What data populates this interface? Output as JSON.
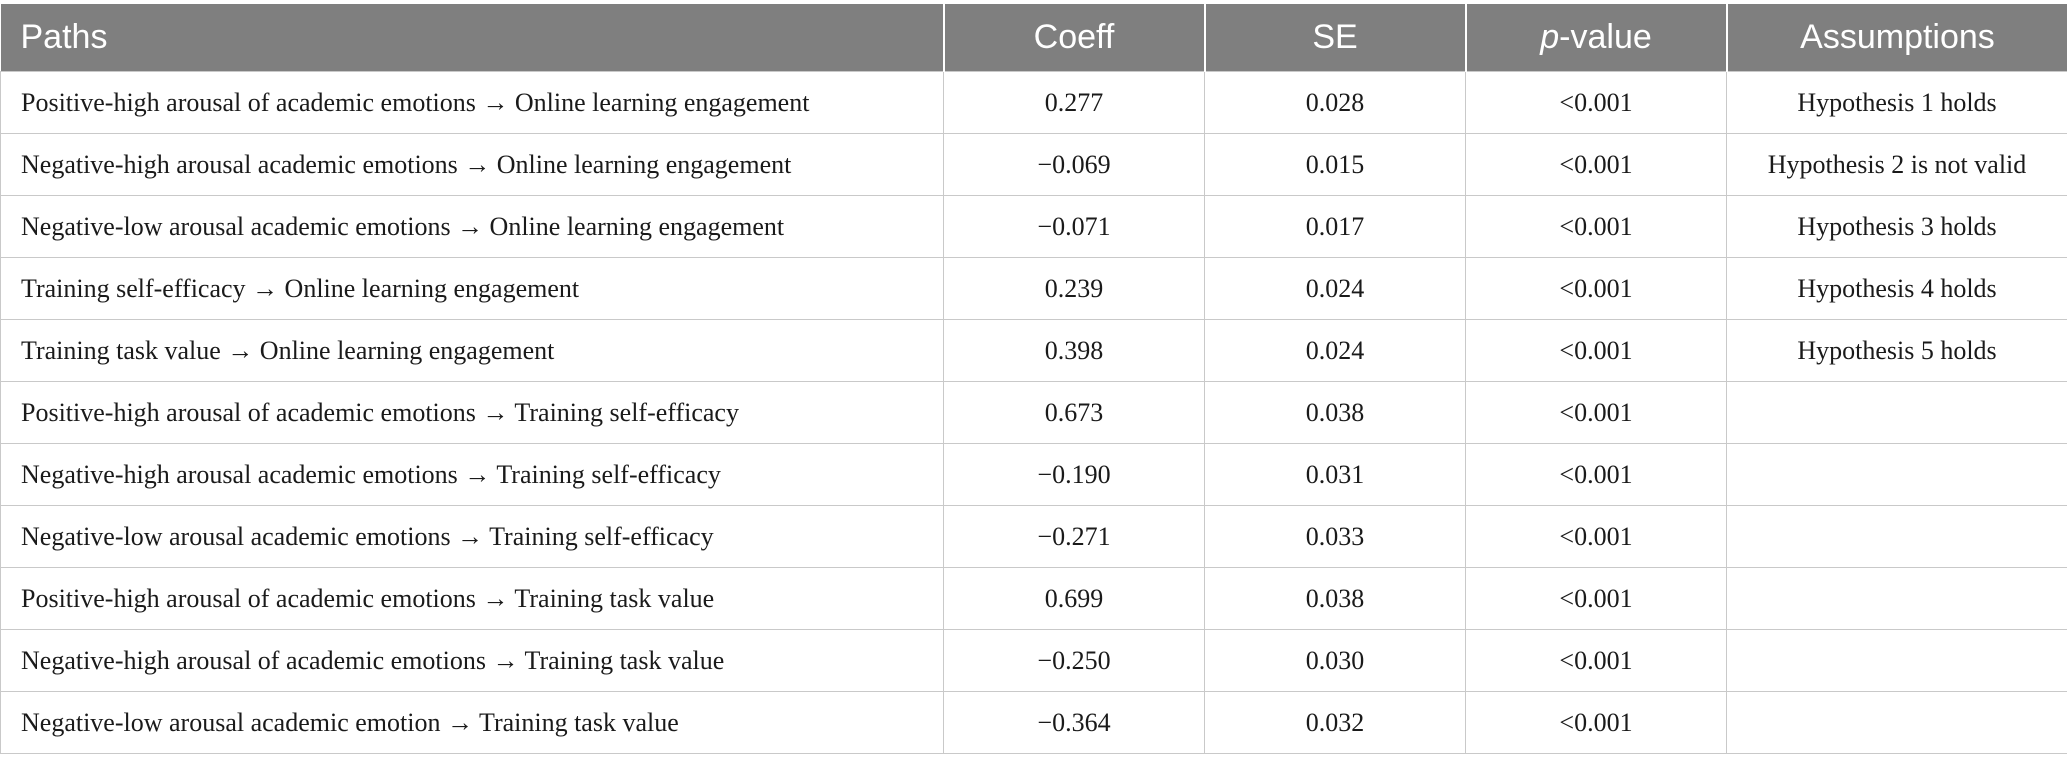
{
  "table": {
    "headers": {
      "paths": "Paths",
      "coeff": "Coeff",
      "se": "SE",
      "p_prefix": "p",
      "p_suffix": "-value",
      "assumptions": "Assumptions"
    },
    "rows": [
      {
        "path": "Positive-high arousal of academic emotions → Online learning engagement",
        "coeff": "0.277",
        "se": "0.028",
        "p": "<0.001",
        "assumption": "Hypothesis 1 holds"
      },
      {
        "path": "Negative-high arousal academic emotions → Online learning engagement",
        "coeff": "−0.069",
        "se": "0.015",
        "p": "<0.001",
        "assumption": "Hypothesis 2 is not valid"
      },
      {
        "path": "Negative-low arousal academic emotions → Online learning engagement",
        "coeff": "−0.071",
        "se": "0.017",
        "p": "<0.001",
        "assumption": "Hypothesis 3 holds"
      },
      {
        "path": "Training self-efficacy → Online learning engagement",
        "coeff": "0.239",
        "se": "0.024",
        "p": "<0.001",
        "assumption": "Hypothesis 4 holds"
      },
      {
        "path": "Training task value → Online learning engagement",
        "coeff": "0.398",
        "se": "0.024",
        "p": "<0.001",
        "assumption": "Hypothesis 5 holds"
      },
      {
        "path": "Positive-high arousal of academic emotions → Training self-efficacy",
        "coeff": "0.673",
        "se": "0.038",
        "p": "<0.001",
        "assumption": ""
      },
      {
        "path": "Negative-high arousal academic emotions → Training self-efficacy",
        "coeff": "−0.190",
        "se": "0.031",
        "p": "<0.001",
        "assumption": ""
      },
      {
        "path": "Negative-low arousal academic emotions → Training self-efficacy",
        "coeff": "−0.271",
        "se": "0.033",
        "p": "<0.001",
        "assumption": ""
      },
      {
        "path": "Positive-high arousal of academic emotions → Training task value",
        "coeff": "0.699",
        "se": "0.038",
        "p": "<0.001",
        "assumption": ""
      },
      {
        "path": "Negative-high arousal of academic emotions → Training task value",
        "coeff": "−0.250",
        "se": "0.030",
        "p": "<0.001",
        "assumption": ""
      },
      {
        "path": "Negative-low arousal academic emotion → Training task value",
        "coeff": "−0.364",
        "se": "0.032",
        "p": "<0.001",
        "assumption": ""
      }
    ]
  }
}
